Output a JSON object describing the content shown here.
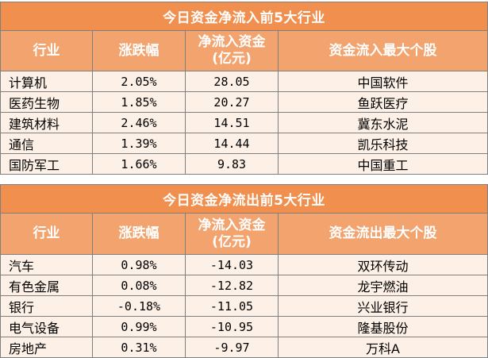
{
  "inflow": {
    "title": "今日资金净流入前5大行业",
    "headers": [
      "行业",
      "涨跌幅",
      "净流入资金\n(亿元)",
      "资金流入最大个股"
    ],
    "header_line1": "净流入资金",
    "header_line2": "(亿元)",
    "rows": [
      {
        "industry": "计算机",
        "change": "2.05%",
        "net": "28.05",
        "stock": "中国软件"
      },
      {
        "industry": "医药生物",
        "change": "1.85%",
        "net": "20.27",
        "stock": "鱼跃医疗"
      },
      {
        "industry": "建筑材料",
        "change": "2.46%",
        "net": "14.51",
        "stock": "冀东水泥"
      },
      {
        "industry": "通信",
        "change": "1.39%",
        "net": "14.44",
        "stock": "凯乐科技"
      },
      {
        "industry": "国防军工",
        "change": "1.66%",
        "net": "9.83",
        "stock": "中国重工"
      }
    ]
  },
  "outflow": {
    "title": "今日资金净流出前5大行业",
    "headers": [
      "行业",
      "涨跌幅",
      "净流入资金\n(亿元)",
      "资金流出最大个股"
    ],
    "header_line1": "净流入资金",
    "header_line2": "(亿元)",
    "rows": [
      {
        "industry": "汽车",
        "change": "0.98%",
        "net": "-14.03",
        "stock": "双环传动"
      },
      {
        "industry": "有色金属",
        "change": "0.08%",
        "net": "-12.82",
        "stock": "龙宇燃油"
      },
      {
        "industry": "银行",
        "change": "-0.18%",
        "net": "-11.05",
        "stock": "兴业银行"
      },
      {
        "industry": "电气设备",
        "change": "0.99%",
        "net": "-10.95",
        "stock": "隆基股份"
      },
      {
        "industry": "房地产",
        "change": "0.31%",
        "net": "-9.97",
        "stock": "万科A"
      }
    ]
  },
  "colors": {
    "title_bg": "#f08f4e",
    "header_bg": "#f2a36e",
    "row_bg": "#fdf0e6"
  }
}
